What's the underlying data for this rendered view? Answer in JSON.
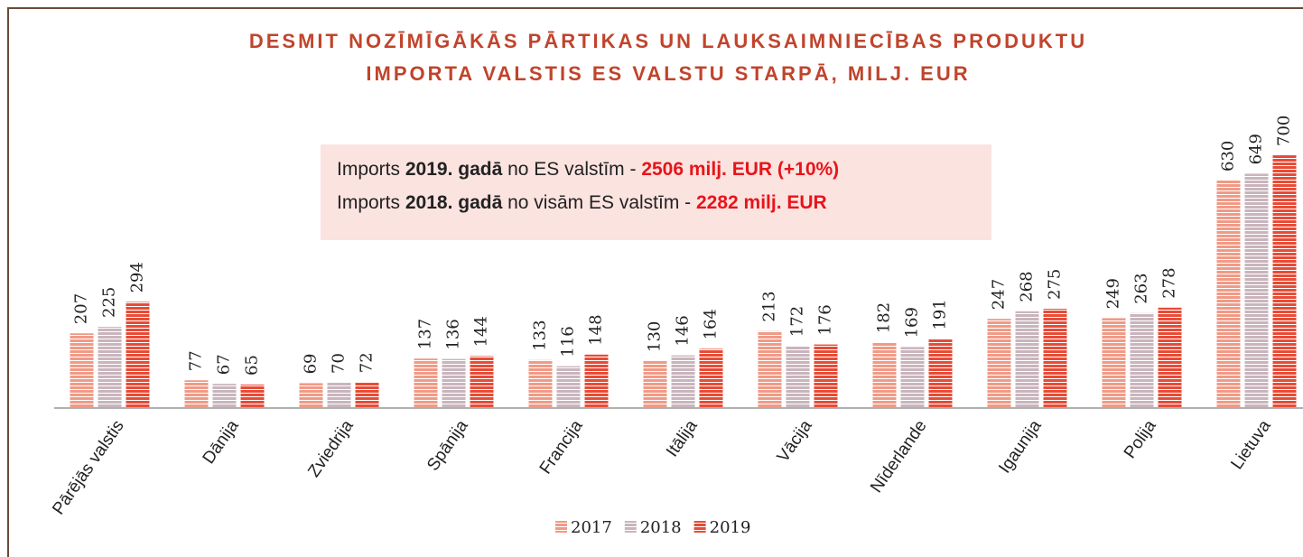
{
  "chart_data": {
    "type": "bar",
    "title": [
      "DESMIT NOZĪMĪGĀKĀS PĀRTIKAS UN LAUKSAIMNIECĪBAS PRODUKTU",
      "IMPORTA VALSTIS ES VALSTU STARPĀ, MILJ. EUR"
    ],
    "annotation": [
      [
        {
          "text": "Imports ",
          "style": "normal"
        },
        {
          "text": "2019. gadā",
          "style": "bold"
        },
        {
          "text": " no ES valstīm - ",
          "style": "normal"
        },
        {
          "text": "2506 milj. EUR (+10%)",
          "style": "highlight"
        }
      ],
      [
        {
          "text": "Imports ",
          "style": "normal"
        },
        {
          "text": "2018. gadā",
          "style": "bold"
        },
        {
          "text": " no visām ES valstīm - ",
          "style": "normal"
        },
        {
          "text": "2282 milj. EUR",
          "style": "highlight"
        }
      ]
    ],
    "categories": [
      "Pārējās valstis",
      "Dānija",
      "Zviedrija",
      "Spānija",
      "Francija",
      "Itālija",
      "Vācija",
      "Nīderlande",
      "Igaunija",
      "Polija",
      "Lietuva"
    ],
    "series": [
      {
        "name": "2017",
        "color": "#f19a86",
        "values": [
          207,
          77,
          69,
          137,
          133,
          130,
          213,
          182,
          247,
          249,
          630
        ]
      },
      {
        "name": "2018",
        "color": "#c9b5bd",
        "values": [
          225,
          67,
          70,
          136,
          116,
          146,
          172,
          169,
          268,
          263,
          649
        ]
      },
      {
        "name": "2019",
        "color": "#e84b36",
        "values": [
          294,
          65,
          72,
          144,
          148,
          164,
          176,
          191,
          275,
          278,
          700
        ]
      }
    ],
    "ylim": [
      0,
      700
    ],
    "legend": "bottom"
  }
}
